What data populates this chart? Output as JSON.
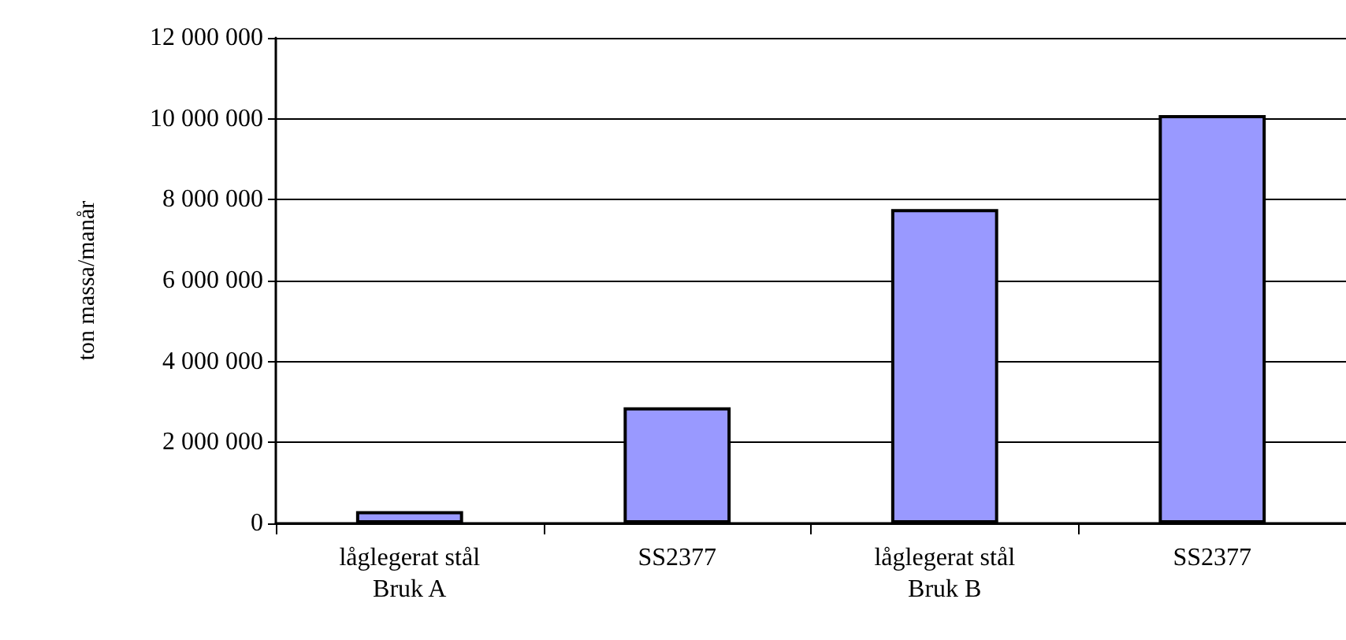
{
  "chart_data": {
    "type": "bar",
    "ylabel": "ton massa/manår",
    "categories": [
      "låglegerat stål\nBruk A",
      "SS2377",
      "låglegerat stål\nBruk B",
      "SS2377"
    ],
    "values": [
      300000,
      2870000,
      7770000,
      10090000
    ],
    "color": "#9999ff",
    "ylim": [
      0,
      12000000
    ],
    "yticks": [
      {
        "value": 0,
        "label": "0"
      },
      {
        "value": 2000000,
        "label": "2 000 000"
      },
      {
        "value": 4000000,
        "label": "4 000 000"
      },
      {
        "value": 6000000,
        "label": "6 000 000"
      },
      {
        "value": 8000000,
        "label": "8 000 000"
      },
      {
        "value": 10000000,
        "label": "10 000 000"
      },
      {
        "value": 12000000,
        "label": "12 000 000"
      }
    ],
    "grid": "y"
  }
}
